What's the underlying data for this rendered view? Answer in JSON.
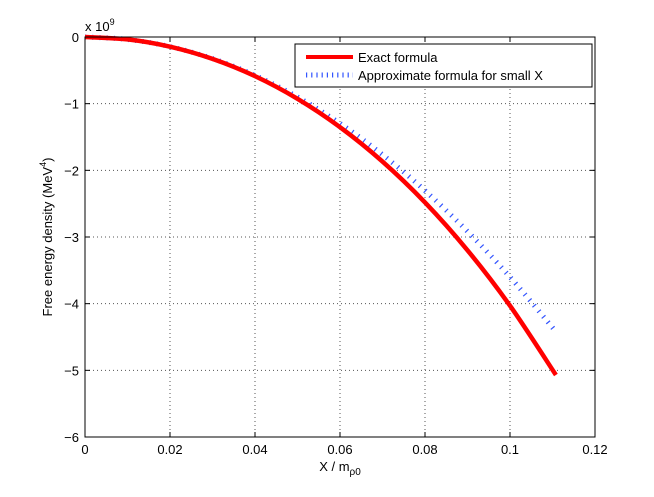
{
  "chart_data": {
    "type": "line",
    "title": "",
    "xlabel": "X / m",
    "xlabel_sub": "ρ0",
    "ylabel": "Free energy density (MeV",
    "ylabel_sup": "4",
    "ylabel_end": ")",
    "y_multiplier": "x 10",
    "y_multiplier_exp": "9",
    "xlim": [
      0,
      0.12
    ],
    "ylim": [
      -6,
      0
    ],
    "xticks": [
      0,
      0.02,
      0.04,
      0.06,
      0.08,
      0.1,
      0.12
    ],
    "xtick_labels": [
      "0",
      "0.02",
      "0.04",
      "0.06",
      "0.08",
      "0.1",
      "0.12"
    ],
    "yticks": [
      -6,
      -5,
      -4,
      -3,
      -2,
      -1,
      0
    ],
    "ytick_labels": [
      "−6",
      "−5",
      "−4",
      "−3",
      "−2",
      "−1",
      "0"
    ],
    "grid": true,
    "legend_position": "top-right",
    "series": [
      {
        "name": "Exact formula",
        "color": "#ff0000",
        "style": "solid",
        "x": [
          0,
          0.01,
          0.02,
          0.03,
          0.04,
          0.05,
          0.06,
          0.07,
          0.08,
          0.09,
          0.1,
          0.1108
        ],
        "y": [
          0,
          -0.036,
          -0.145,
          -0.328,
          -0.587,
          -0.927,
          -1.352,
          -1.868,
          -2.481,
          -3.199,
          -4.031,
          -5.07
        ]
      },
      {
        "name": "Approximate formula for small X",
        "color": "#3355ff",
        "style": "dotted",
        "x": [
          0,
          0.01,
          0.02,
          0.03,
          0.04,
          0.05,
          0.06,
          0.07,
          0.08,
          0.09,
          0.1,
          0.1108
        ],
        "y": [
          0,
          -0.036,
          -0.144,
          -0.324,
          -0.576,
          -0.9,
          -1.296,
          -1.764,
          -2.304,
          -2.916,
          -3.6,
          -4.42
        ]
      }
    ]
  }
}
